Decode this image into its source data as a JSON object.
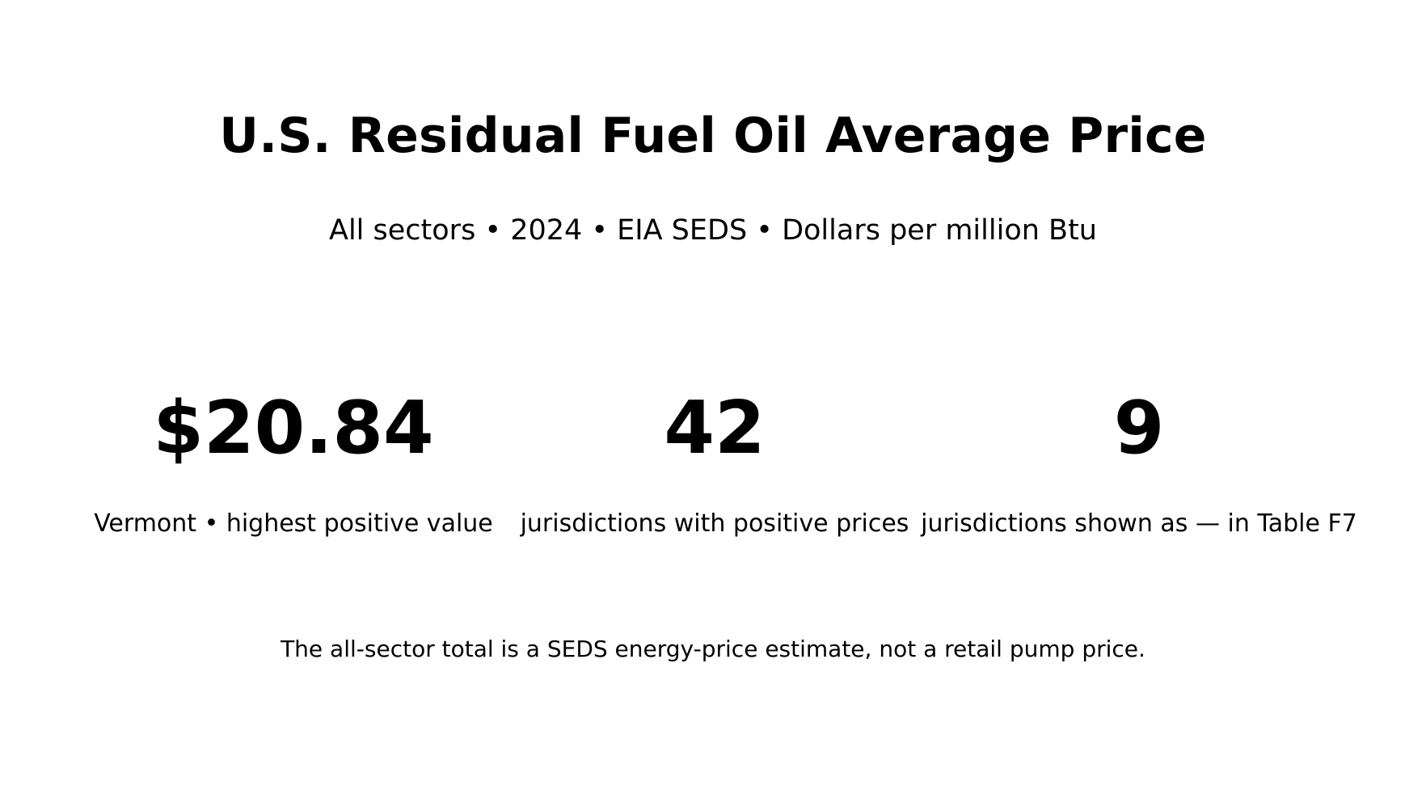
{
  "chart_data": {
    "type": "table",
    "title": "U.S. Residual Fuel Oil Average Price",
    "subtitle": "All sectors • 2024 • EIA SEDS • Dollars per million Btu",
    "kpis": [
      {
        "value": "$20.84",
        "label": "Vermont • highest positive value"
      },
      {
        "value": "42",
        "label": "jurisdictions with positive prices"
      },
      {
        "value": "9",
        "label": "jurisdictions shown as — in Table F7"
      }
    ],
    "footnote": "The all-sector total is a SEDS energy-price estimate, not a retail pump price."
  }
}
